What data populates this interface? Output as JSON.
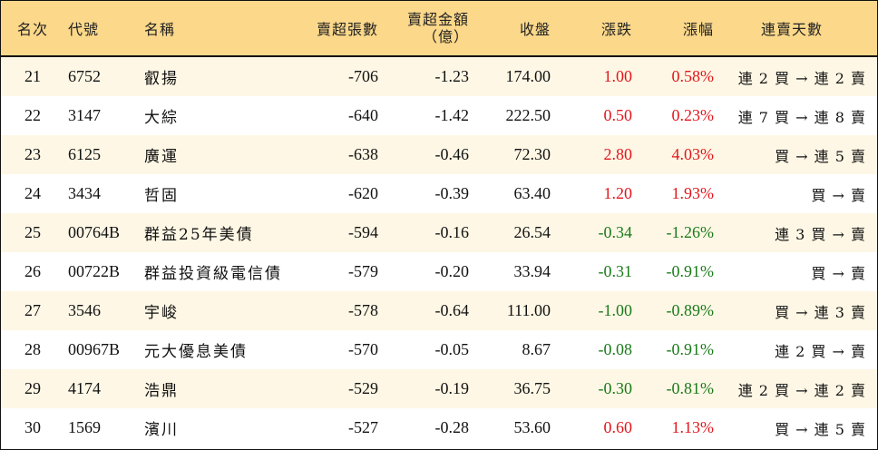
{
  "header": {
    "rank": "名次",
    "code": "代號",
    "name": "名稱",
    "net_sell_lots": "賣超張數",
    "net_sell_amount_line1": "賣超金額",
    "net_sell_amount_line2": "（億）",
    "close": "收盤",
    "change": "漲跌",
    "change_pct": "漲幅",
    "consecutive_days": "連賣天數"
  },
  "colors": {
    "header_bg": "#fbd88a",
    "odd_row_bg": "#fef7e5",
    "up": "#e3161d",
    "down": "#1a7a1a"
  },
  "rows": [
    {
      "rank": "21",
      "code": "6752",
      "name": "叡揚",
      "lots": "-706",
      "amount": "-1.23",
      "close": "174.00",
      "change": "1.00",
      "pct": "0.58%",
      "dir": "up",
      "days": "連 2 買 → 連 2 賣"
    },
    {
      "rank": "22",
      "code": "3147",
      "name": "大綜",
      "lots": "-640",
      "amount": "-1.42",
      "close": "222.50",
      "change": "0.50",
      "pct": "0.23%",
      "dir": "up",
      "days": "連 7 買 → 連 8 賣"
    },
    {
      "rank": "23",
      "code": "6125",
      "name": "廣運",
      "lots": "-638",
      "amount": "-0.46",
      "close": "72.30",
      "change": "2.80",
      "pct": "4.03%",
      "dir": "up",
      "days": "買 → 連 5 賣"
    },
    {
      "rank": "24",
      "code": "3434",
      "name": "哲固",
      "lots": "-620",
      "amount": "-0.39",
      "close": "63.40",
      "change": "1.20",
      "pct": "1.93%",
      "dir": "up",
      "days": "買 → 賣"
    },
    {
      "rank": "25",
      "code": "00764B",
      "name": "群益25年美債",
      "lots": "-594",
      "amount": "-0.16",
      "close": "26.54",
      "change": "-0.34",
      "pct": "-1.26%",
      "dir": "down",
      "days": "連 3 買 → 賣"
    },
    {
      "rank": "26",
      "code": "00722B",
      "name": "群益投資級電信債",
      "lots": "-579",
      "amount": "-0.20",
      "close": "33.94",
      "change": "-0.31",
      "pct": "-0.91%",
      "dir": "down",
      "days": "買 → 賣"
    },
    {
      "rank": "27",
      "code": "3546",
      "name": "宇峻",
      "lots": "-578",
      "amount": "-0.64",
      "close": "111.00",
      "change": "-1.00",
      "pct": "-0.89%",
      "dir": "down",
      "days": "買 → 連 3 賣"
    },
    {
      "rank": "28",
      "code": "00967B",
      "name": "元大優息美債",
      "lots": "-570",
      "amount": "-0.05",
      "close": "8.67",
      "change": "-0.08",
      "pct": "-0.91%",
      "dir": "down",
      "days": "連 2 買 → 賣"
    },
    {
      "rank": "29",
      "code": "4174",
      "name": "浩鼎",
      "lots": "-529",
      "amount": "-0.19",
      "close": "36.75",
      "change": "-0.30",
      "pct": "-0.81%",
      "dir": "down",
      "days": "連 2 買 → 連 2 賣"
    },
    {
      "rank": "30",
      "code": "1569",
      "name": "濱川",
      "lots": "-527",
      "amount": "-0.28",
      "close": "53.60",
      "change": "0.60",
      "pct": "1.13%",
      "dir": "up",
      "days": "買 → 連 5 賣"
    }
  ]
}
